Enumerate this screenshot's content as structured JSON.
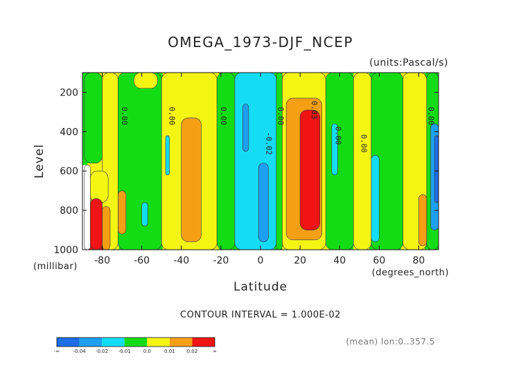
{
  "chart_data": {
    "type": "heatmap",
    "title": "OMEGA_1973-DJF_NCEP",
    "units_label": "(units:Pascal/s)",
    "xlabel": "Latitude",
    "ylabel": "Level",
    "x_unit_label": "(degrees_north)",
    "y_unit_label": "(millibar)",
    "xlim": [
      -90,
      90
    ],
    "ylim": [
      1000,
      100
    ],
    "x_ticks": [
      -80,
      -60,
      -40,
      -20,
      0,
      20,
      40,
      60,
      80
    ],
    "y_ticks": [
      200,
      400,
      600,
      800,
      1000
    ],
    "contour_interval_text": "CONTOUR INTERVAL = 1.000E-02",
    "mean_note": "(mean) lon:0..357.5",
    "contour_labels": [
      {
        "lat": -70,
        "level": 320,
        "text": "0.00"
      },
      {
        "lat": -46,
        "level": 320,
        "text": "0.00"
      },
      {
        "lat": -20,
        "level": 320,
        "text": "0.00"
      },
      {
        "lat": 9,
        "level": 320,
        "text": "0.00"
      },
      {
        "lat": 3,
        "level": 460,
        "text": "-0.02"
      },
      {
        "lat": 26,
        "level": 290,
        "text": "0.03"
      },
      {
        "lat": 38,
        "level": 420,
        "text": "0.00"
      },
      {
        "lat": 51,
        "level": 460,
        "text": "0.00"
      },
      {
        "lat": 85,
        "level": 320,
        "text": "0.00"
      }
    ],
    "colorbar": {
      "colors": [
        "#1e6fe6",
        "#1ea0f0",
        "#14dcf5",
        "#14dc14",
        "#f5f514",
        "#f5a014",
        "#f01414"
      ],
      "labels": [
        "-∞",
        "-0.04",
        "-0.02",
        "-0.01",
        "0.0",
        "0.01",
        "0.02",
        "∞"
      ]
    },
    "field_columns": [
      {
        "lat": -89,
        "bands": [
          [
            100,
            570,
            "#14dc14"
          ],
          [
            570,
            1000,
            "#ffffff"
          ]
        ]
      },
      {
        "lat": -86,
        "bands": [
          [
            100,
            560,
            "#14dc14"
          ],
          [
            560,
            700,
            "#f5f514"
          ],
          [
            700,
            760,
            "#f5a014"
          ],
          [
            760,
            1000,
            "#f01414"
          ]
        ]
      },
      {
        "lat": -82,
        "bands": [
          [
            100,
            620,
            "#f5f514"
          ],
          [
            620,
            780,
            "#f5a014"
          ],
          [
            780,
            1000,
            "#f01414"
          ]
        ]
      },
      {
        "lat": -77,
        "bands": [
          [
            100,
            700,
            "#f5f514"
          ],
          [
            700,
            1000,
            "#f5a014"
          ]
        ]
      },
      {
        "lat": -73,
        "bands": [
          [
            100,
            1000,
            "#f5f514"
          ]
        ]
      },
      {
        "lat": -70,
        "bands": [
          [
            100,
            640,
            "#f5f514"
          ],
          [
            640,
            1000,
            "#14dc14"
          ]
        ]
      },
      {
        "lat": -67,
        "bands": [
          [
            100,
            1000,
            "#14dc14"
          ]
        ]
      },
      {
        "lat": -62,
        "bands": [
          [
            100,
            1000,
            "#14dc14"
          ]
        ]
      },
      {
        "lat": -57,
        "bands": [
          [
            100,
            1000,
            "#14dc14"
          ]
        ]
      },
      {
        "lat": -52,
        "bands": [
          [
            100,
            1000,
            "#14dc14"
          ]
        ]
      },
      {
        "lat": -47,
        "bands": [
          [
            100,
            1000,
            "#f5f514"
          ]
        ]
      },
      {
        "lat": -43,
        "bands": [
          [
            100,
            1000,
            "#f5f514"
          ]
        ]
      },
      {
        "lat": -39,
        "bands": [
          [
            100,
            350,
            "#f5f514"
          ],
          [
            350,
            960,
            "#f5a014"
          ],
          [
            960,
            1000,
            "#f5f514"
          ]
        ]
      },
      {
        "lat": -35,
        "bands": [
          [
            100,
            320,
            "#f5f514"
          ],
          [
            320,
            980,
            "#f5a014"
          ],
          [
            980,
            1000,
            "#f5f514"
          ]
        ]
      },
      {
        "lat": -31,
        "bands": [
          [
            100,
            400,
            "#f5f514"
          ],
          [
            400,
            900,
            "#f5a014"
          ],
          [
            900,
            1000,
            "#f5f514"
          ]
        ]
      },
      {
        "lat": -27,
        "bands": [
          [
            100,
            1000,
            "#f5f514"
          ]
        ]
      },
      {
        "lat": -23,
        "bands": [
          [
            100,
            1000,
            "#f5f514"
          ]
        ]
      },
      {
        "lat": -19,
        "bands": [
          [
            100,
            1000,
            "#14dc14"
          ]
        ]
      },
      {
        "lat": -15,
        "bands": [
          [
            100,
            1000,
            "#14dc14"
          ]
        ]
      },
      {
        "lat": -11,
        "bands": [
          [
            100,
            240,
            "#14dc14"
          ],
          [
            240,
            940,
            "#14dcf5"
          ],
          [
            940,
            1000,
            "#14dc14"
          ]
        ]
      },
      {
        "lat": -7,
        "bands": [
          [
            100,
            120,
            "#14dc14"
          ],
          [
            120,
            250,
            "#14dcf5"
          ],
          [
            250,
            520,
            "#1ea0f0"
          ],
          [
            520,
            1000,
            "#14dcf5"
          ]
        ]
      },
      {
        "lat": -3,
        "bands": [
          [
            100,
            1000,
            "#14dcf5"
          ]
        ]
      },
      {
        "lat": 1,
        "bands": [
          [
            100,
            560,
            "#14dcf5"
          ],
          [
            560,
            930,
            "#1ea0f0"
          ],
          [
            930,
            1000,
            "#14dcf5"
          ]
        ]
      },
      {
        "lat": 5,
        "bands": [
          [
            100,
            500,
            "#14dcf5"
          ],
          [
            500,
            960,
            "#1ea0f0"
          ],
          [
            960,
            1000,
            "#14dcf5"
          ]
        ]
      },
      {
        "lat": 9,
        "bands": [
          [
            100,
            1000,
            "#14dc14"
          ]
        ]
      },
      {
        "lat": 13,
        "bands": [
          [
            100,
            1000,
            "#f5f514"
          ]
        ]
      },
      {
        "lat": 17,
        "bands": [
          [
            100,
            220,
            "#f5f514"
          ],
          [
            220,
            1000,
            "#f5a014"
          ]
        ]
      },
      {
        "lat": 21,
        "bands": [
          [
            100,
            220,
            "#f5f514"
          ],
          [
            220,
            680,
            "#f5a014"
          ],
          [
            680,
            930,
            "#f01414"
          ],
          [
            930,
            1000,
            "#f5a014"
          ]
        ]
      },
      {
        "lat": 25,
        "bands": [
          [
            100,
            220,
            "#f5f514"
          ],
          [
            220,
            290,
            "#f5a014"
          ],
          [
            290,
            900,
            "#f01414"
          ],
          [
            900,
            1000,
            "#f5a014"
          ]
        ]
      },
      {
        "lat": 29,
        "bands": [
          [
            100,
            220,
            "#f5f514"
          ],
          [
            220,
            350,
            "#f5a014"
          ],
          [
            350,
            820,
            "#f01414"
          ],
          [
            820,
            1000,
            "#f5a014"
          ]
        ]
      },
      {
        "lat": 33,
        "bands": [
          [
            100,
            1000,
            "#f5f514"
          ]
        ]
      },
      {
        "lat": 37,
        "bands": [
          [
            100,
            350,
            "#14dc14"
          ],
          [
            350,
            1000,
            "#f5f514"
          ]
        ]
      },
      {
        "lat": 41,
        "bands": [
          [
            100,
            1000,
            "#14dc14"
          ]
        ]
      },
      {
        "lat": 45,
        "bands": [
          [
            100,
            1000,
            "#14dc14"
          ]
        ]
      },
      {
        "lat": 49,
        "bands": [
          [
            100,
            1000,
            "#f5f514"
          ]
        ]
      },
      {
        "lat": 53,
        "bands": [
          [
            100,
            1000,
            "#f5f514"
          ]
        ]
      },
      {
        "lat": 57,
        "bands": [
          [
            100,
            1000,
            "#14dc14"
          ]
        ]
      },
      {
        "lat": 61,
        "bands": [
          [
            100,
            1000,
            "#14dc14"
          ]
        ]
      },
      {
        "lat": 65,
        "bands": [
          [
            100,
            1000,
            "#14dc14"
          ]
        ]
      },
      {
        "lat": 69,
        "bands": [
          [
            100,
            1000,
            "#14dc14"
          ]
        ]
      },
      {
        "lat": 73,
        "bands": [
          [
            100,
            1000,
            "#f5f514"
          ]
        ]
      },
      {
        "lat": 77,
        "bands": [
          [
            100,
            1000,
            "#f5f514"
          ]
        ]
      },
      {
        "lat": 81,
        "bands": [
          [
            100,
            1000,
            "#f5f514"
          ]
        ]
      },
      {
        "lat": 85,
        "bands": [
          [
            100,
            1000,
            "#14dc14"
          ]
        ]
      },
      {
        "lat": 89,
        "bands": [
          [
            100,
            1000,
            "#14dc14"
          ]
        ]
      }
    ],
    "field_patches": [
      {
        "lat": [
          -89,
          -80
        ],
        "level": [
          100,
          560
        ],
        "color": "#14dc14"
      },
      {
        "lat": [
          -80,
          -72
        ],
        "level": [
          100,
          1000
        ],
        "color": "#f5f514"
      },
      {
        "lat": [
          -72,
          -50
        ],
        "level": [
          100,
          1000
        ],
        "color": "#14dc14"
      },
      {
        "lat": [
          -50,
          -22
        ],
        "level": [
          100,
          1000
        ],
        "color": "#f5f514"
      },
      {
        "lat": [
          -22,
          -13
        ],
        "level": [
          100,
          1000
        ],
        "color": "#14dc14"
      },
      {
        "lat": [
          -13,
          8
        ],
        "level": [
          100,
          1000
        ],
        "color": "#14dcf5"
      },
      {
        "lat": [
          8,
          11
        ],
        "level": [
          100,
          1000
        ],
        "color": "#14dc14"
      },
      {
        "lat": [
          11,
          33
        ],
        "level": [
          100,
          1000
        ],
        "color": "#f5f514"
      },
      {
        "lat": [
          33,
          47
        ],
        "level": [
          100,
          1000
        ],
        "color": "#14dc14"
      },
      {
        "lat": [
          47,
          56
        ],
        "level": [
          100,
          1000
        ],
        "color": "#f5f514"
      },
      {
        "lat": [
          56,
          72
        ],
        "level": [
          100,
          1000
        ],
        "color": "#14dc14"
      },
      {
        "lat": [
          72,
          84
        ],
        "level": [
          100,
          1000
        ],
        "color": "#f5f514"
      },
      {
        "lat": [
          84,
          90
        ],
        "level": [
          100,
          1000
        ],
        "color": "#14dc14"
      },
      {
        "lat": [
          -89,
          -86
        ],
        "level": [
          570,
          1000
        ],
        "color": "#ffffff"
      },
      {
        "lat": [
          -86,
          -77
        ],
        "level": [
          600,
          760
        ],
        "color": "#f5f514"
      },
      {
        "lat": [
          -86,
          -80
        ],
        "level": [
          740,
          1000
        ],
        "color": "#f01414"
      },
      {
        "lat": [
          -80,
          -76
        ],
        "level": [
          780,
          1000
        ],
        "color": "#f5a014"
      },
      {
        "lat": [
          -72,
          -68
        ],
        "level": [
          700,
          920
        ],
        "color": "#f5a014"
      },
      {
        "lat": [
          -60,
          -57
        ],
        "level": [
          760,
          880
        ],
        "color": "#14dcf5"
      },
      {
        "lat": [
          -64,
          -52
        ],
        "level": [
          100,
          180
        ],
        "color": "#f5f514"
      },
      {
        "lat": [
          -40,
          -30
        ],
        "level": [
          330,
          960
        ],
        "color": "#f5a014"
      },
      {
        "lat": [
          -48,
          -46
        ],
        "level": [
          420,
          620
        ],
        "color": "#14dcf5"
      },
      {
        "lat": [
          -9,
          -6
        ],
        "level": [
          260,
          500
        ],
        "color": "#1ea0f0"
      },
      {
        "lat": [
          -1,
          4
        ],
        "level": [
          560,
          960
        ],
        "color": "#1ea0f0"
      },
      {
        "lat": [
          13,
          31
        ],
        "level": [
          230,
          950
        ],
        "color": "#f5a014"
      },
      {
        "lat": [
          20,
          30
        ],
        "level": [
          290,
          900
        ],
        "color": "#f01414"
      },
      {
        "lat": [
          36,
          39
        ],
        "level": [
          360,
          620
        ],
        "color": "#14dcf5"
      },
      {
        "lat": [
          56,
          60
        ],
        "level": [
          520,
          960
        ],
        "color": "#14dcf5"
      },
      {
        "lat": [
          80,
          84
        ],
        "level": [
          720,
          980
        ],
        "color": "#f5a014"
      },
      {
        "lat": [
          86,
          90
        ],
        "level": [
          360,
          900
        ],
        "color": "#1ea0f0"
      },
      {
        "lat": [
          88,
          90
        ],
        "level": [
          420,
          760
        ],
        "color": "#1e6fe6"
      }
    ]
  }
}
